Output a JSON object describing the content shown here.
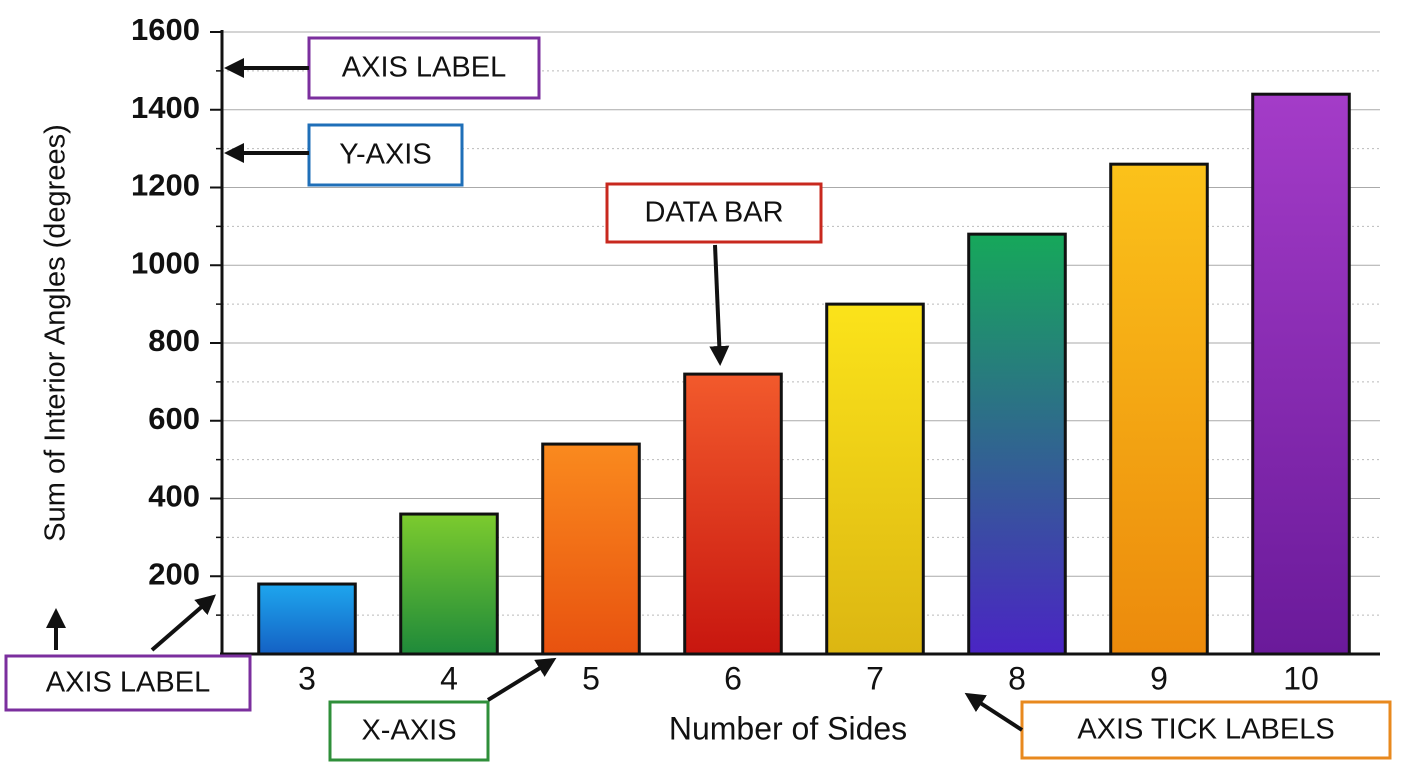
{
  "chart_data": {
    "type": "bar",
    "y_label": "Sum of Interior Angles (degrees)",
    "x_label": "Number of Sides",
    "categories": [
      "3",
      "4",
      "5",
      "6",
      "7",
      "8",
      "9",
      "10"
    ],
    "values": [
      180,
      360,
      540,
      720,
      900,
      1080,
      1260,
      1440
    ],
    "colors": [
      [
        "#1ea6ee",
        "#1461c4"
      ],
      [
        "#7ccb2e",
        "#1f8a3a"
      ],
      [
        "#fa8a1e",
        "#e8520f"
      ],
      [
        "#f25a2c",
        "#c8160f"
      ],
      [
        "#fbe31a",
        "#dcb612"
      ],
      [
        "#16a85a",
        "#4a24c4"
      ],
      [
        "#fbc21a",
        "#ec8a0c"
      ],
      [
        "#a43cc8",
        "#6a1a9a"
      ]
    ],
    "ylim": [
      0,
      1600
    ],
    "yticks": [
      200,
      400,
      600,
      800,
      1000,
      1200,
      1400,
      1600
    ],
    "grid": true,
    "annotations": [
      {
        "text": "AXIS LABEL",
        "color": "#7b2f9e"
      },
      {
        "text": "Y-AXIS",
        "color": "#1f6fb8"
      },
      {
        "text": "DATA BAR",
        "color": "#c8281e"
      },
      {
        "text": "AXIS LABEL",
        "color": "#7b2f9e"
      },
      {
        "text": "X-AXIS",
        "color": "#2f8f3a"
      },
      {
        "text": "AXIS TICK LABELS",
        "color": "#e8891e"
      }
    ]
  }
}
